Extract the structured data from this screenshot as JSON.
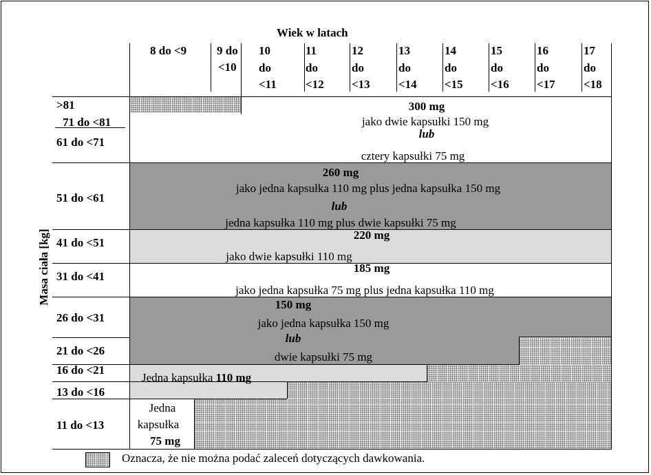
{
  "header": {
    "title": "Wiek w latach",
    "age_cols": [
      {
        "l1": "8 do <9",
        "l2": "",
        "l3": ""
      },
      {
        "l1": "9 do",
        "l2": "<10",
        "l3": ""
      },
      {
        "l1": "10",
        "l2": "do",
        "l3": "<11"
      },
      {
        "l1": "11",
        "l2": "do",
        "l3": "<12"
      },
      {
        "l1": "12",
        "l2": "do",
        "l3": "<13"
      },
      {
        "l1": "13",
        "l2": "do",
        "l3": "<14"
      },
      {
        "l1": "14",
        "l2": "do",
        "l3": "<15"
      },
      {
        "l1": "15",
        "l2": "do",
        "l3": "<16"
      },
      {
        "l1": "16",
        "l2": "do",
        "l3": "<17"
      },
      {
        "l1": "17",
        "l2": "do",
        "l3": "<18"
      }
    ]
  },
  "y_axis_label": "Masa ciała [kg]",
  "weight_rows": [
    ">81",
    "71 do <81",
    "61 do <71",
    "51 do <61",
    "41 do <51",
    "31 do <41",
    "26 do <31",
    "21 do <26",
    "16 do <21",
    "13 do <16",
    "11 do <13"
  ],
  "doses": {
    "d300": {
      "dose": "300 mg",
      "line1": "jako dwie kapsułki 150 mg",
      "or": "lub",
      "line2": "cztery kapsułki 75 mg"
    },
    "d260": {
      "dose": "260 mg",
      "line1": "jako jedna kapsułka 110 mg plus jedna kapsułka 150 mg",
      "or": "lub",
      "line2": "jedna kapsułka 110 mg plus dwie kapsułki 75 mg"
    },
    "d220": {
      "dose": "220 mg",
      "line1": "jako dwie kapsułki 110 mg"
    },
    "d185": {
      "dose": "185 mg",
      "line1": "jako jedna kapsułka 75 mg plus jedna kapsułka 110 mg"
    },
    "d150": {
      "dose": "150 mg",
      "line1": "jako jedna kapsułka 150 mg",
      "or": "lub",
      "line2": "dwie kapsułki 75 mg"
    },
    "d110": {
      "prefix": "Jedna kapsułka",
      "dose": "110 mg"
    },
    "d75": {
      "l1": "Jedna",
      "l2": "kapsułka",
      "dose": "75 mg"
    }
  },
  "legend": {
    "text": "Oznacza, że nie można podać zaleceń dotyczących dawkowania."
  }
}
